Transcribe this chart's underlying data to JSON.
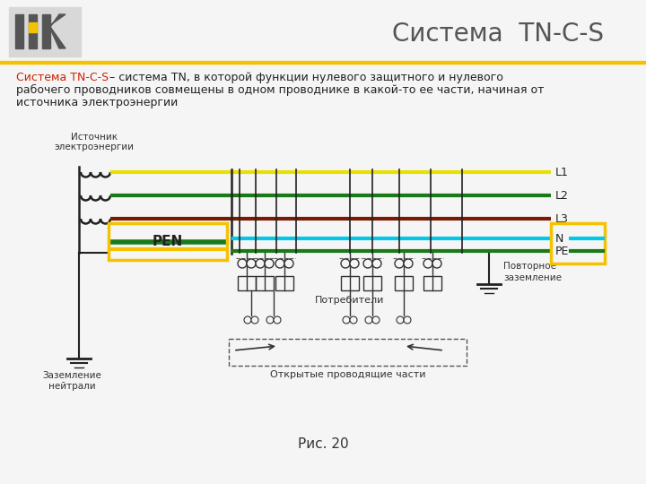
{
  "title": "Система  TN-C-S",
  "bg_color": "#f5f5f5",
  "yellow_stripe_color": "#f5c200",
  "title_color": "#555555",
  "desc_color_highlight": "#cc2200",
  "desc_color_normal": "#222222",
  "fig_caption": "Рис. 20",
  "line_L1_color": "#e8e000",
  "line_L2_color": "#1a7a1a",
  "line_L3_color": "#7a1a00",
  "line_N_color": "#00c8e8",
  "line_PE_color": "#1a7a1a",
  "pen_box_color": "#f5c200",
  "pen_text": "PEN",
  "label_L1": "L1",
  "label_L2": "L2",
  "label_L3": "L3",
  "label_N": "N",
  "label_PE": "PE",
  "label_source_1": "Источник",
  "label_source_2": "электроэнергии",
  "label_consumers": "Потребители",
  "label_ground_neutral_1": "Заземление",
  "label_ground_neutral_2": "нейтрали",
  "label_repeat_ground_1": "Повторное",
  "label_repeat_ground_2": "заземление",
  "label_open_parts": "Открытые проводящие части"
}
